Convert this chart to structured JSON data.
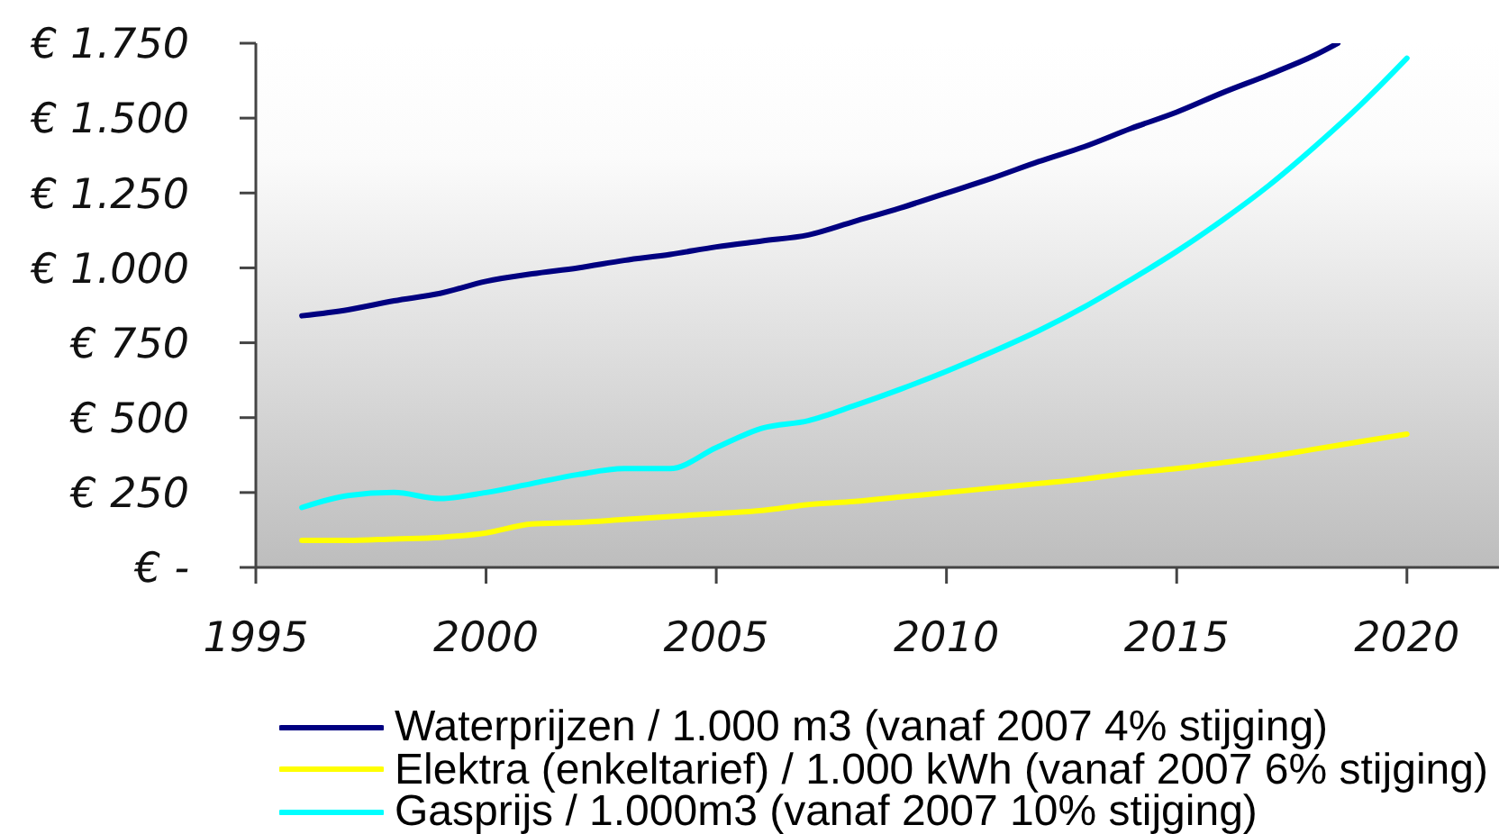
{
  "chart_data": {
    "type": "line",
    "x": [
      1996,
      1997,
      1998,
      1999,
      2000,
      2001,
      2002,
      2003,
      2004,
      2005,
      2006,
      2007,
      2008,
      2009,
      2010,
      2011,
      2012,
      2013,
      2014,
      2015,
      2016,
      2017,
      2018,
      2019,
      2020
    ],
    "xlim": [
      1995,
      2022
    ],
    "xticks": [
      1995,
      2000,
      2005,
      2010,
      2015,
      2020
    ],
    "ylim": [
      0,
      1750
    ],
    "yticks": [
      {
        "value": 0,
        "label": "€ -"
      },
      {
        "value": 250,
        "label": "€ 250"
      },
      {
        "value": 500,
        "label": "€ 500"
      },
      {
        "value": 750,
        "label": "€ 750"
      },
      {
        "value": 1000,
        "label": "€ 1.000"
      },
      {
        "value": 1250,
        "label": "€ 1.250"
      },
      {
        "value": 1500,
        "label": "€ 1.500"
      },
      {
        "value": 1750,
        "label": "€ 1.750"
      }
    ],
    "legend": "bottom",
    "marker": "none",
    "line_style": "solid",
    "series": [
      {
        "name": "Waterprijzen / 1.000 m3 (vanaf 2007 4% stijging)",
        "color": "#000080",
        "x": [
          1996,
          1997,
          1998,
          1999,
          2000,
          2001,
          2002,
          2003,
          2004,
          2005,
          2006,
          2007,
          2008,
          2009,
          2010,
          2011,
          2012,
          2013,
          2014,
          2015,
          2016,
          2017,
          2018,
          2018.5
        ],
        "values": [
          840,
          860,
          890,
          915,
          955,
          980,
          1000,
          1025,
          1045,
          1070,
          1090,
          1110,
          1155,
          1200,
          1250,
          1300,
          1355,
          1405,
          1465,
          1520,
          1585,
          1645,
          1710,
          1750
        ]
      },
      {
        "name": "Elektra (enkeltarief) / 1.000 kWh (vanaf 2007 6% stijging)",
        "color": "#ffff00",
        "values": [
          90,
          90,
          95,
          100,
          115,
          145,
          150,
          160,
          170,
          180,
          190,
          210,
          220,
          235,
          250,
          265,
          280,
          295,
          315,
          330,
          350,
          370,
          395,
          420,
          445
        ]
      },
      {
        "name": "Gasprijs / 1.000m3 (vanaf 2007 10% stijging)",
        "color": "#00ffff",
        "values": [
          200,
          240,
          250,
          230,
          250,
          280,
          310,
          330,
          330,
          400,
          465,
          490,
          540,
          595,
          655,
          720,
          790,
          870,
          960,
          1055,
          1160,
          1275,
          1405,
          1545,
          1700
        ]
      }
    ]
  }
}
